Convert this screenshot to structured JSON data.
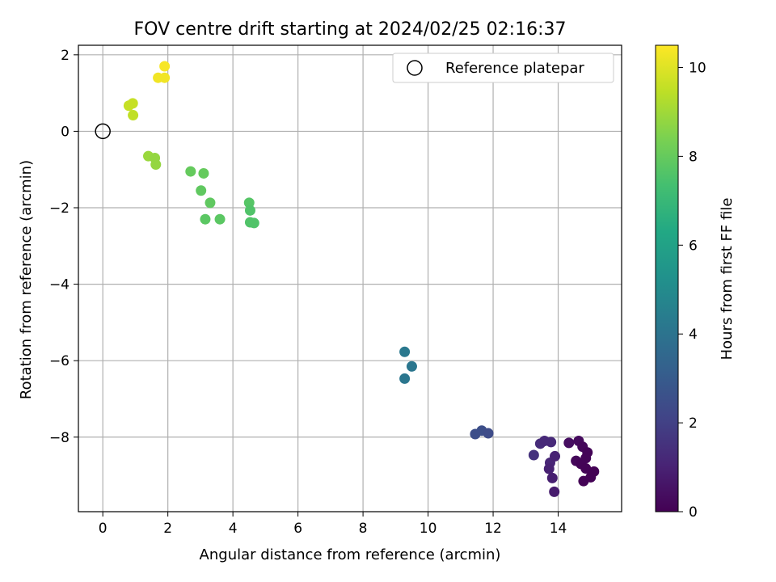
{
  "chart_data": {
    "type": "scatter",
    "title": "FOV centre drift starting at 2024/02/25 02:16:37",
    "xlabel": "Angular distance from reference (arcmin)",
    "ylabel": "Rotation from reference (arcmin)",
    "xlim": [
      -0.75,
      15.95
    ],
    "ylim": [
      -9.95,
      2.25
    ],
    "xticks": [
      0,
      2,
      4,
      6,
      8,
      10,
      12,
      14
    ],
    "yticks": [
      2,
      0,
      -2,
      -4,
      -6,
      -8
    ],
    "grid": true,
    "colormap": "viridis",
    "colorbar": {
      "label": "Hours from first FF file",
      "range": [
        0,
        10.5
      ],
      "ticks": [
        0,
        2,
        4,
        6,
        8,
        10
      ]
    },
    "legend": {
      "placement": "top-right",
      "entries": [
        {
          "label": "Reference platepar",
          "marker": "open-circle"
        }
      ]
    },
    "reference_point": {
      "x": 0,
      "y": 0
    },
    "points": [
      {
        "x": 1.9,
        "y": 1.7,
        "hours": 10.4
      },
      {
        "x": 1.7,
        "y": 1.4,
        "hours": 10.3
      },
      {
        "x": 1.9,
        "y": 1.4,
        "hours": 10.3
      },
      {
        "x": 0.8,
        "y": 0.67,
        "hours": 9.6
      },
      {
        "x": 0.92,
        "y": 0.73,
        "hours": 9.6
      },
      {
        "x": 0.93,
        "y": 0.42,
        "hours": 9.5
      },
      {
        "x": 1.4,
        "y": -0.65,
        "hours": 8.9
      },
      {
        "x": 1.6,
        "y": -0.7,
        "hours": 8.8
      },
      {
        "x": 1.63,
        "y": -0.87,
        "hours": 8.8
      },
      {
        "x": 2.7,
        "y": -1.05,
        "hours": 8.0
      },
      {
        "x": 3.1,
        "y": -1.1,
        "hours": 8.0
      },
      {
        "x": 3.02,
        "y": -1.55,
        "hours": 7.9
      },
      {
        "x": 3.3,
        "y": -1.87,
        "hours": 7.9
      },
      {
        "x": 3.15,
        "y": -2.3,
        "hours": 7.8
      },
      {
        "x": 3.6,
        "y": -2.3,
        "hours": 7.8
      },
      {
        "x": 4.5,
        "y": -1.87,
        "hours": 7.7
      },
      {
        "x": 4.53,
        "y": -2.07,
        "hours": 7.6
      },
      {
        "x": 4.53,
        "y": -2.38,
        "hours": 7.6
      },
      {
        "x": 4.65,
        "y": -2.4,
        "hours": 7.6
      },
      {
        "x": 9.28,
        "y": -5.77,
        "hours": 4.2
      },
      {
        "x": 9.5,
        "y": -6.15,
        "hours": 4.1
      },
      {
        "x": 9.28,
        "y": -6.47,
        "hours": 4.1
      },
      {
        "x": 11.45,
        "y": -7.92,
        "hours": 2.5
      },
      {
        "x": 11.65,
        "y": -7.83,
        "hours": 2.5
      },
      {
        "x": 11.85,
        "y": -7.9,
        "hours": 2.4
      },
      {
        "x": 13.25,
        "y": -8.47,
        "hours": 1.5
      },
      {
        "x": 13.45,
        "y": -8.17,
        "hours": 1.3
      },
      {
        "x": 13.58,
        "y": -8.1,
        "hours": 1.2
      },
      {
        "x": 13.78,
        "y": -8.13,
        "hours": 1.2
      },
      {
        "x": 13.75,
        "y": -8.67,
        "hours": 1.1
      },
      {
        "x": 13.9,
        "y": -8.5,
        "hours": 1.0
      },
      {
        "x": 13.72,
        "y": -8.83,
        "hours": 1.0
      },
      {
        "x": 13.82,
        "y": -9.07,
        "hours": 0.9
      },
      {
        "x": 13.88,
        "y": -9.43,
        "hours": 0.8
      },
      {
        "x": 14.33,
        "y": -8.15,
        "hours": 0.4
      },
      {
        "x": 14.63,
        "y": -8.1,
        "hours": 0.3
      },
      {
        "x": 14.75,
        "y": -8.25,
        "hours": 0.2
      },
      {
        "x": 14.9,
        "y": -8.4,
        "hours": 0.1
      },
      {
        "x": 14.85,
        "y": -8.55,
        "hours": 0.1
      },
      {
        "x": 14.55,
        "y": -8.62,
        "hours": 0.2
      },
      {
        "x": 14.7,
        "y": -8.7,
        "hours": 0.1
      },
      {
        "x": 14.85,
        "y": -8.82,
        "hours": 0.05
      },
      {
        "x": 15.1,
        "y": -8.9,
        "hours": 0.02
      },
      {
        "x": 15.0,
        "y": -9.05,
        "hours": 0.03
      },
      {
        "x": 14.78,
        "y": -9.15,
        "hours": 0.05
      }
    ]
  }
}
